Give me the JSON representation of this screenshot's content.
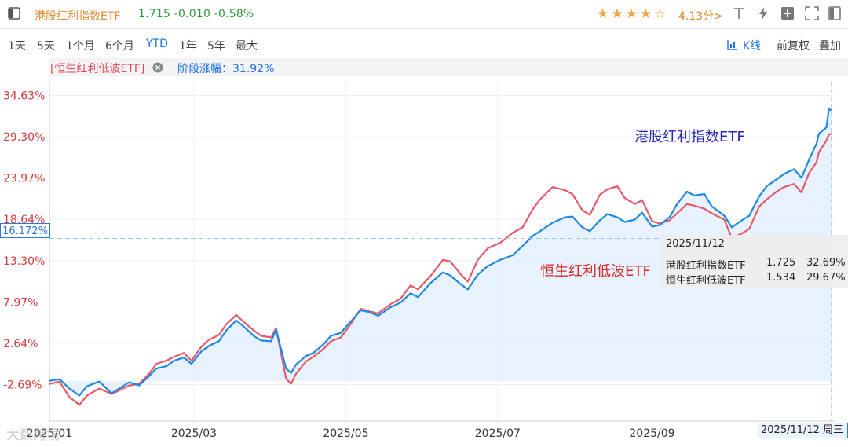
{
  "header": {
    "title": "港股红利指数ETF",
    "quote": "1.715 -0.010 -0.58%",
    "stars": "★★★★☆",
    "rating": "4.13分>",
    "icons": [
      "panel-toggle-icon",
      "text-tool-icon",
      "lightning-icon",
      "add-box-icon",
      "sidebar-icon",
      "fullscreen-icon",
      "window-icon"
    ]
  },
  "range_tabs": [
    "1天",
    "5天",
    "1个月",
    "6个月",
    "YTD",
    "1年",
    "5年",
    "最大"
  ],
  "active_range": "YTD",
  "kline_label": "K线",
  "adjust_label": "前复权",
  "overlay_label": "叠加",
  "compare": {
    "series_tag": "[恒生红利低波ETF]",
    "change_label": "阶段涨幅：",
    "change_value": "31.92%"
  },
  "colors": {
    "blue_series": "#1e88e5",
    "red_series": "#e8586a",
    "area_fill": "#e4f0fc",
    "accent": "#1a73e8",
    "quote_green": "#2b9a3b"
  },
  "crosshair": {
    "y_value": "16.172%",
    "x_value": "2025/11/12 周三"
  },
  "tooltip": {
    "date": "2025/11/12",
    "rows": [
      {
        "name": "港股红利指数ETF",
        "price": "1.725",
        "pct": "32.69%"
      },
      {
        "name": "恒生红利低波ETF",
        "price": "1.534",
        "pct": "29.67%"
      }
    ]
  },
  "watermark": "大数跨境",
  "chart_data": {
    "type": "line",
    "x_ticks": [
      "2025/01",
      "2025/03",
      "2025/05",
      "2025/07",
      "2025/09"
    ],
    "y_ticks": [
      "34.63%",
      "29.30%",
      "23.97%",
      "18.64%",
      "13.30%",
      "7.97%",
      "2.64%",
      "-2.69%"
    ],
    "y_tick_values": [
      34.63,
      29.3,
      23.97,
      18.64,
      13.3,
      7.97,
      2.64,
      -2.69
    ],
    "xlim": [
      "2025-01-02",
      "2025-11-13"
    ],
    "ylim": [
      -7.4,
      36.5
    ],
    "series": [
      {
        "name": "港股红利指数ETF",
        "color": "#1e88e5",
        "points": [
          [
            "2025-01-02",
            -2.2
          ],
          [
            "2025-01-06",
            -2.0
          ],
          [
            "2025-01-10",
            -3.2
          ],
          [
            "2025-01-14",
            -4.1
          ],
          [
            "2025-01-17",
            -2.9
          ],
          [
            "2025-01-22",
            -2.3
          ],
          [
            "2025-01-27",
            -3.8
          ],
          [
            "2025-02-03",
            -2.4
          ],
          [
            "2025-02-07",
            -2.8
          ],
          [
            "2025-02-11",
            -1.6
          ],
          [
            "2025-02-14",
            -0.6
          ],
          [
            "2025-02-18",
            -0.3
          ],
          [
            "2025-02-21",
            0.4
          ],
          [
            "2025-02-25",
            0.8
          ],
          [
            "2025-02-28",
            0.0
          ],
          [
            "2025-03-04",
            1.6
          ],
          [
            "2025-03-07",
            2.3
          ],
          [
            "2025-03-11",
            2.9
          ],
          [
            "2025-03-14",
            4.3
          ],
          [
            "2025-03-18",
            5.6
          ],
          [
            "2025-03-21",
            4.8
          ],
          [
            "2025-03-25",
            3.6
          ],
          [
            "2025-03-28",
            3.0
          ],
          [
            "2025-04-01",
            2.9
          ],
          [
            "2025-04-03",
            4.4
          ],
          [
            "2025-04-07",
            -0.6
          ],
          [
            "2025-04-09",
            -1.2
          ],
          [
            "2025-04-11",
            -0.1
          ],
          [
            "2025-04-15",
            1.0
          ],
          [
            "2025-04-18",
            1.4
          ],
          [
            "2025-04-22",
            2.5
          ],
          [
            "2025-04-25",
            3.6
          ],
          [
            "2025-04-29",
            4.0
          ],
          [
            "2025-05-02",
            5.1
          ],
          [
            "2025-05-07",
            6.9
          ],
          [
            "2025-05-10",
            6.7
          ],
          [
            "2025-05-14",
            6.2
          ],
          [
            "2025-05-19",
            7.3
          ],
          [
            "2025-05-23",
            7.9
          ],
          [
            "2025-05-27",
            9.1
          ],
          [
            "2025-05-30",
            8.6
          ],
          [
            "2025-06-04",
            10.4
          ],
          [
            "2025-06-09",
            11.8
          ],
          [
            "2025-06-12",
            11.4
          ],
          [
            "2025-06-16",
            10.3
          ],
          [
            "2025-06-19",
            9.6
          ],
          [
            "2025-06-23",
            11.5
          ],
          [
            "2025-06-27",
            12.6
          ],
          [
            "2025-07-02",
            13.4
          ],
          [
            "2025-07-07",
            14.0
          ],
          [
            "2025-07-11",
            15.2
          ],
          [
            "2025-07-15",
            16.5
          ],
          [
            "2025-07-18",
            17.1
          ],
          [
            "2025-07-23",
            18.2
          ],
          [
            "2025-07-28",
            18.9
          ],
          [
            "2025-07-31",
            19.0
          ],
          [
            "2025-08-04",
            17.6
          ],
          [
            "2025-08-07",
            17.1
          ],
          [
            "2025-08-11",
            18.5
          ],
          [
            "2025-08-14",
            19.3
          ],
          [
            "2025-08-18",
            18.9
          ],
          [
            "2025-08-21",
            18.3
          ],
          [
            "2025-08-25",
            18.6
          ],
          [
            "2025-08-28",
            19.5
          ],
          [
            "2025-09-01",
            17.7
          ],
          [
            "2025-09-04",
            17.9
          ],
          [
            "2025-09-08",
            18.9
          ],
          [
            "2025-09-11",
            20.6
          ],
          [
            "2025-09-15",
            22.2
          ],
          [
            "2025-09-18",
            21.7
          ],
          [
            "2025-09-22",
            21.9
          ],
          [
            "2025-09-25",
            20.3
          ],
          [
            "2025-09-30",
            19.1
          ],
          [
            "2025-10-03",
            17.6
          ],
          [
            "2025-10-07",
            18.5
          ],
          [
            "2025-10-10",
            19.1
          ],
          [
            "2025-10-14",
            21.6
          ],
          [
            "2025-10-17",
            22.9
          ],
          [
            "2025-10-21",
            23.8
          ],
          [
            "2025-10-24",
            24.5
          ],
          [
            "2025-10-28",
            25.1
          ],
          [
            "2025-10-31",
            24.0
          ],
          [
            "2025-11-03",
            26.3
          ],
          [
            "2025-11-06",
            28.4
          ],
          [
            "2025-11-07",
            29.7
          ],
          [
            "2025-11-10",
            30.5
          ],
          [
            "2025-11-11",
            32.9
          ],
          [
            "2025-11-12",
            32.69
          ]
        ]
      },
      {
        "name": "恒生红利低波ETF",
        "color": "#e8586a",
        "points": [
          [
            "2025-01-02",
            -2.6
          ],
          [
            "2025-01-06",
            -2.3
          ],
          [
            "2025-01-10",
            -4.3
          ],
          [
            "2025-01-14",
            -5.3
          ],
          [
            "2025-01-17",
            -4.1
          ],
          [
            "2025-01-22",
            -3.2
          ],
          [
            "2025-01-27",
            -3.9
          ],
          [
            "2025-02-03",
            -2.8
          ],
          [
            "2025-02-07",
            -2.6
          ],
          [
            "2025-02-11",
            -1.3
          ],
          [
            "2025-02-14",
            0.0
          ],
          [
            "2025-02-18",
            0.4
          ],
          [
            "2025-02-21",
            0.9
          ],
          [
            "2025-02-25",
            1.4
          ],
          [
            "2025-02-28",
            0.4
          ],
          [
            "2025-03-04",
            2.2
          ],
          [
            "2025-03-07",
            3.1
          ],
          [
            "2025-03-11",
            3.7
          ],
          [
            "2025-03-14",
            5.1
          ],
          [
            "2025-03-18",
            6.3
          ],
          [
            "2025-03-21",
            5.4
          ],
          [
            "2025-03-25",
            4.3
          ],
          [
            "2025-03-28",
            3.6
          ],
          [
            "2025-04-01",
            3.4
          ],
          [
            "2025-04-03",
            4.6
          ],
          [
            "2025-04-07",
            -1.9
          ],
          [
            "2025-04-09",
            -2.6
          ],
          [
            "2025-04-11",
            -1.3
          ],
          [
            "2025-04-15",
            0.3
          ],
          [
            "2025-04-18",
            0.9
          ],
          [
            "2025-04-22",
            1.9
          ],
          [
            "2025-04-25",
            2.9
          ],
          [
            "2025-04-29",
            3.4
          ],
          [
            "2025-05-02",
            4.7
          ],
          [
            "2025-05-07",
            7.1
          ],
          [
            "2025-05-10",
            6.8
          ],
          [
            "2025-05-14",
            6.5
          ],
          [
            "2025-05-19",
            7.7
          ],
          [
            "2025-05-23",
            8.4
          ],
          [
            "2025-05-27",
            10.1
          ],
          [
            "2025-05-30",
            9.6
          ],
          [
            "2025-06-04",
            11.3
          ],
          [
            "2025-06-09",
            13.4
          ],
          [
            "2025-06-12",
            13.2
          ],
          [
            "2025-06-16",
            11.6
          ],
          [
            "2025-06-19",
            10.6
          ],
          [
            "2025-06-23",
            13.4
          ],
          [
            "2025-06-27",
            14.9
          ],
          [
            "2025-07-02",
            15.6
          ],
          [
            "2025-07-07",
            16.9
          ],
          [
            "2025-07-11",
            17.6
          ],
          [
            "2025-07-15",
            19.9
          ],
          [
            "2025-07-18",
            21.2
          ],
          [
            "2025-07-23",
            22.8
          ],
          [
            "2025-07-28",
            22.4
          ],
          [
            "2025-07-31",
            21.9
          ],
          [
            "2025-08-04",
            19.8
          ],
          [
            "2025-08-07",
            19.2
          ],
          [
            "2025-08-11",
            21.8
          ],
          [
            "2025-08-14",
            22.5
          ],
          [
            "2025-08-18",
            22.9
          ],
          [
            "2025-08-21",
            21.4
          ],
          [
            "2025-08-25",
            20.6
          ],
          [
            "2025-08-28",
            21.1
          ],
          [
            "2025-09-01",
            18.4
          ],
          [
            "2025-09-04",
            18.1
          ],
          [
            "2025-09-08",
            18.5
          ],
          [
            "2025-09-11",
            19.4
          ],
          [
            "2025-09-15",
            20.6
          ],
          [
            "2025-09-18",
            20.4
          ],
          [
            "2025-09-22",
            20.0
          ],
          [
            "2025-09-25",
            19.4
          ],
          [
            "2025-09-30",
            18.6
          ],
          [
            "2025-10-03",
            16.2
          ],
          [
            "2025-10-07",
            16.8
          ],
          [
            "2025-10-10",
            17.4
          ],
          [
            "2025-10-14",
            20.3
          ],
          [
            "2025-10-17",
            21.2
          ],
          [
            "2025-10-21",
            22.2
          ],
          [
            "2025-10-24",
            22.8
          ],
          [
            "2025-10-28",
            23.2
          ],
          [
            "2025-10-31",
            22.1
          ],
          [
            "2025-11-03",
            24.6
          ],
          [
            "2025-11-06",
            26.0
          ],
          [
            "2025-11-07",
            27.3
          ],
          [
            "2025-11-10",
            28.8
          ],
          [
            "2025-11-11",
            29.6
          ],
          [
            "2025-11-12",
            29.67
          ]
        ]
      }
    ]
  }
}
